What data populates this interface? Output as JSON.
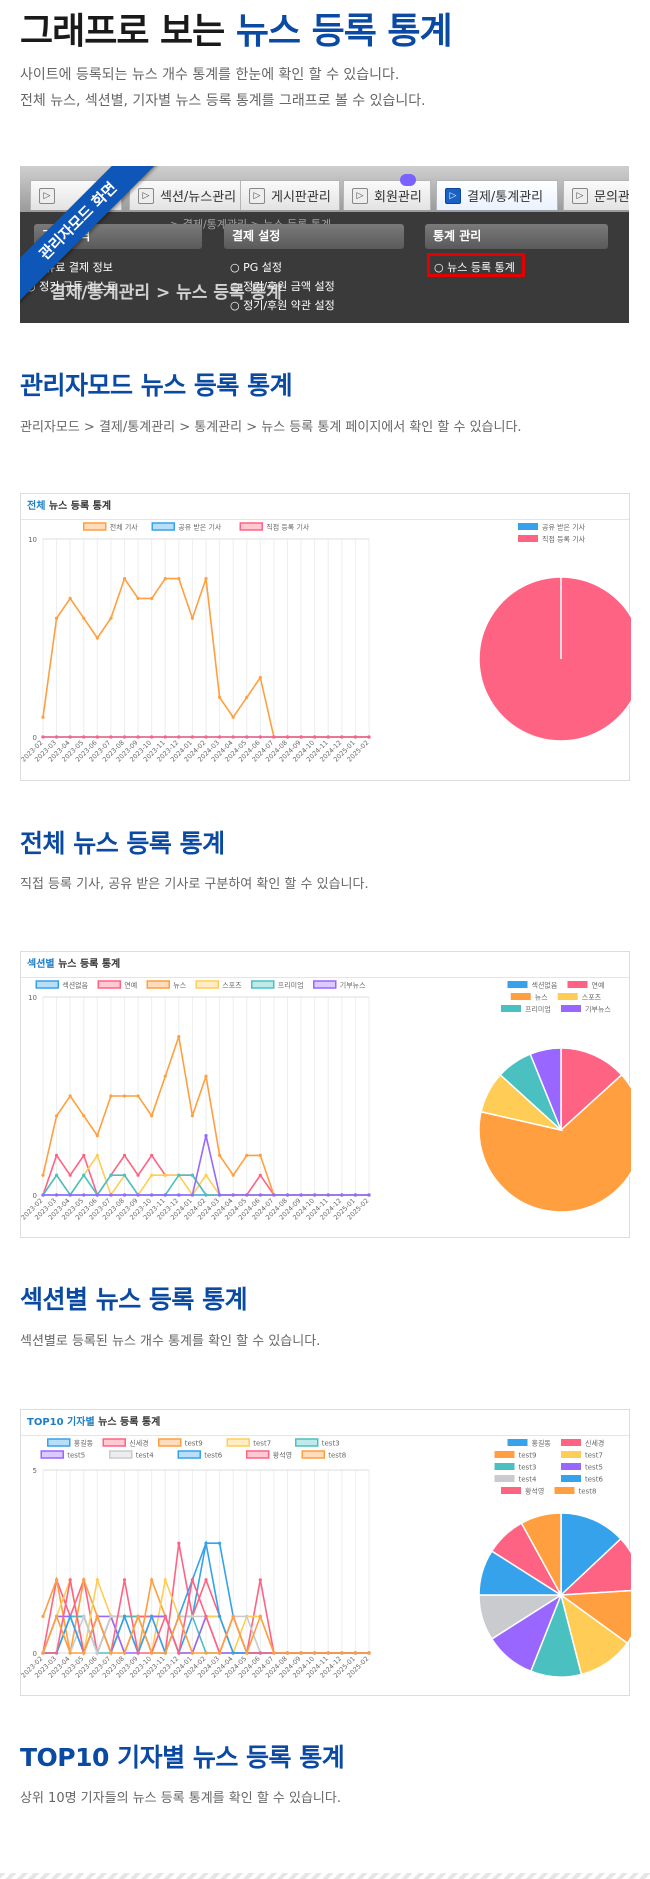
{
  "hero": {
    "title_prefix": "그래프로 보는",
    "title_highlight": "뉴스 등록 통계",
    "desc_line1": "사이트에 등록되는 뉴스 개수 통계를 한눈에 확인 할 수 있습니다.",
    "desc_line2": "전체 뉴스, 섹션별, 기자별 뉴스 등록 통계를 그래프로 볼 수 있습니다."
  },
  "admin": {
    "ribbon": "관리자모드 화면",
    "tabs": [
      "",
      "섹션/뉴스관리",
      "게시판관리",
      "회원관리",
      "결제/통계관리",
      "문의관리"
    ],
    "breadcrumb_faint": "> 결제/통계관리 > 뉴스 등록 통계",
    "groups": [
      {
        "title": "결제 내역",
        "items": [
          "유료 결제 정보",
          "정기 구독 리스트"
        ]
      },
      {
        "title": "결제 설정",
        "items": [
          "PG 설정",
          "정기/후원 금액 설정",
          "정기/후원 약관 설정"
        ]
      },
      {
        "title": "통계 관리",
        "items": [
          "뉴스 등록 통계"
        ]
      }
    ],
    "page_crumb": "결제/통계관리 > 뉴스 등록 통계"
  },
  "sections": [
    {
      "title": "관리자모드 뉴스 등록 통계",
      "desc": "관리자모드 > 결제/통계관리 > 통계관리 > 뉴스 등록 통계 페이지에서 확인 할 수 있습니다."
    },
    {
      "title": "전체 뉴스 등록 통계",
      "desc": "직접 등록 기사, 공유 받은 기사로 구분하여 확인 할 수 있습니다."
    },
    {
      "title": "섹션별 뉴스 등록 통계",
      "desc": "섹션별로 등록된 뉴스 개수 통계를 확인 할 수 있습니다."
    },
    {
      "title": "TOP10 기자별 뉴스 등록 통계",
      "desc": "상위 10명 기자들의 뉴스 등록 통계를 확인 할 수 있습니다."
    }
  ],
  "cards": [
    {
      "head_accent": "전체",
      "head_rest": " 뉴스 등록 통계"
    },
    {
      "head_accent": "섹션별",
      "head_rest": " 뉴스 등록 통계"
    },
    {
      "head_accent": "TOP10 기자별",
      "head_rest": " 뉴스 등록 통계"
    }
  ],
  "chart_data": [
    {
      "type": "line",
      "x": [
        "2023-02",
        "2023-03",
        "2023-04",
        "2023-05",
        "2023-06",
        "2023-07",
        "2023-08",
        "2023-09",
        "2023-10",
        "2023-11",
        "2023-12",
        "2024-01",
        "2024-02",
        "2024-03",
        "2024-04",
        "2024-05",
        "2024-06",
        "2024-07",
        "2024-08",
        "2024-09",
        "2024-10",
        "2024-11",
        "2024-12",
        "2025-01",
        "2025-02"
      ],
      "ylim": [
        0,
        10
      ],
      "yticks": [
        0,
        10
      ],
      "grid": true,
      "legend": "top",
      "series": [
        {
          "name": "전체 기사",
          "color": "#ff9f40",
          "values": [
            1,
            6,
            7,
            6,
            5,
            6,
            8,
            7,
            7,
            8,
            8,
            6,
            8,
            2,
            1,
            2,
            3,
            0,
            0,
            0,
            0,
            0,
            0,
            0,
            0
          ]
        },
        {
          "name": "공유 받은 기사",
          "color": "#36a2eb",
          "values": [
            0,
            0,
            0,
            0,
            0,
            0,
            0,
            0,
            0,
            0,
            0,
            0,
            0,
            0,
            0,
            0,
            0,
            0,
            0,
            0,
            0,
            0,
            0,
            0,
            0
          ]
        },
        {
          "name": "직접 등록 기사",
          "color": "#ff6384",
          "values": [
            0,
            0,
            0,
            0,
            0,
            0,
            0,
            0,
            0,
            0,
            0,
            0,
            0,
            0,
            0,
            0,
            0,
            0,
            0,
            0,
            0,
            0,
            0,
            0,
            0
          ]
        }
      ],
      "pie": {
        "legend": [
          "공유 받은 기사",
          "직접 등록 기사"
        ],
        "colors": [
          "#36a2eb",
          "#ff6384"
        ],
        "values": [
          0,
          100
        ]
      }
    },
    {
      "type": "line",
      "x": [
        "2023-02",
        "2023-03",
        "2023-04",
        "2023-05",
        "2023-06",
        "2023-07",
        "2023-08",
        "2023-09",
        "2023-10",
        "2023-11",
        "2023-12",
        "2024-01",
        "2024-02",
        "2024-03",
        "2024-04",
        "2024-05",
        "2024-06",
        "2024-07",
        "2024-08",
        "2024-09",
        "2024-10",
        "2024-11",
        "2024-12",
        "2025-01",
        "2025-02"
      ],
      "ylim": [
        0,
        10
      ],
      "yticks": [
        0,
        10
      ],
      "grid": true,
      "legend": "top",
      "series": [
        {
          "name": "섹션없음",
          "color": "#36a2eb",
          "values": [
            0,
            0,
            0,
            0,
            0,
            0,
            0,
            0,
            0,
            0,
            0,
            0,
            0,
            0,
            0,
            0,
            0,
            0,
            0,
            0,
            0,
            0,
            0,
            0,
            0
          ]
        },
        {
          "name": "연예",
          "color": "#ff6384",
          "values": [
            0,
            2,
            1,
            2,
            0,
            1,
            2,
            1,
            2,
            1,
            1,
            1,
            0,
            0,
            0,
            0,
            1,
            0,
            0,
            0,
            0,
            0,
            0,
            0,
            0
          ]
        },
        {
          "name": "뉴스",
          "color": "#ff9f40",
          "values": [
            1,
            4,
            5,
            4,
            3,
            5,
            5,
            5,
            4,
            6,
            8,
            4,
            6,
            2,
            1,
            2,
            2,
            0,
            0,
            0,
            0,
            0,
            0,
            0,
            0
          ]
        },
        {
          "name": "스포츠",
          "color": "#ffcd56",
          "values": [
            0,
            1,
            0,
            1,
            2,
            0,
            1,
            0,
            1,
            1,
            1,
            0,
            1,
            0,
            0,
            0,
            0,
            0,
            0,
            0,
            0,
            0,
            0,
            0,
            0
          ]
        },
        {
          "name": "프리미엄",
          "color": "#4bc0c0",
          "values": [
            0,
            1,
            0,
            1,
            0,
            1,
            1,
            0,
            0,
            0,
            1,
            1,
            0,
            0,
            0,
            0,
            0,
            0,
            0,
            0,
            0,
            0,
            0,
            0,
            0
          ]
        },
        {
          "name": "기부뉴스",
          "color": "#9966ff",
          "values": [
            0,
            0,
            0,
            0,
            0,
            0,
            0,
            0,
            0,
            0,
            0,
            0,
            3,
            0,
            0,
            0,
            0,
            0,
            0,
            0,
            0,
            0,
            0,
            0,
            0
          ]
        }
      ],
      "pie": {
        "legend": [
          "섹션없음",
          "연예",
          "뉴스",
          "스포츠",
          "프리미엄",
          "기부뉴스"
        ],
        "colors": [
          "#36a2eb",
          "#ff6384",
          "#ff9f40",
          "#ffcd56",
          "#4bc0c0",
          "#9966ff"
        ],
        "values": [
          0,
          13,
          64,
          8,
          7,
          6
        ]
      }
    },
    {
      "type": "line",
      "x": [
        "2023-02",
        "2023-03",
        "2023-04",
        "2023-05",
        "2023-06",
        "2023-07",
        "2023-08",
        "2023-09",
        "2023-10",
        "2023-11",
        "2023-12",
        "2024-01",
        "2024-02",
        "2024-03",
        "2024-04",
        "2024-05",
        "2024-06",
        "2024-07",
        "2024-08",
        "2024-09",
        "2024-10",
        "2024-11",
        "2024-12",
        "2025-01",
        "2025-02"
      ],
      "ylim": [
        0,
        5
      ],
      "yticks": [
        0,
        5
      ],
      "grid": true,
      "legend": "top",
      "series": [
        {
          "name": "홍길동",
          "color": "#36a2eb",
          "values": [
            0,
            0,
            1,
            1,
            0,
            1,
            1,
            1,
            1,
            1,
            0,
            1,
            3,
            3,
            1,
            0,
            0,
            0,
            0,
            0,
            0,
            0,
            0,
            0,
            0
          ]
        },
        {
          "name": "신세경",
          "color": "#ff6384",
          "values": [
            0,
            2,
            1,
            2,
            0,
            1,
            0,
            1,
            1,
            0,
            3,
            1,
            2,
            1,
            0,
            0,
            2,
            0,
            0,
            0,
            0,
            0,
            0,
            0,
            0
          ]
        },
        {
          "name": "test9",
          "color": "#ff9f40",
          "values": [
            1,
            2,
            0,
            2,
            1,
            0,
            1,
            0,
            2,
            1,
            0,
            0,
            1,
            1,
            0,
            0,
            0,
            0,
            0,
            0,
            0,
            0,
            0,
            0,
            0
          ]
        },
        {
          "name": "test7",
          "color": "#ffcd56",
          "values": [
            0,
            1,
            2,
            0,
            2,
            1,
            0,
            1,
            0,
            2,
            1,
            0,
            1,
            1,
            0,
            1,
            1,
            0,
            0,
            0,
            0,
            0,
            0,
            0,
            0
          ]
        },
        {
          "name": "test3",
          "color": "#4bc0c0",
          "values": [
            0,
            0,
            1,
            1,
            0,
            0,
            1,
            1,
            0,
            0,
            1,
            1,
            0,
            0,
            0,
            0,
            0,
            0,
            0,
            0,
            0,
            0,
            0,
            0,
            0
          ]
        },
        {
          "name": "test5",
          "color": "#9966ff",
          "values": [
            0,
            1,
            1,
            0,
            1,
            1,
            0,
            0,
            1,
            1,
            0,
            0,
            1,
            0,
            0,
            0,
            0,
            0,
            0,
            0,
            0,
            0,
            0,
            0,
            0
          ]
        },
        {
          "name": "test4",
          "color": "#c9cbcf",
          "values": [
            0,
            1,
            0,
            1,
            0,
            1,
            1,
            0,
            1,
            0,
            1,
            1,
            1,
            0,
            1,
            1,
            0,
            0,
            0,
            0,
            0,
            0,
            0,
            0,
            0
          ]
        },
        {
          "name": "test6",
          "color": "#36a2eb",
          "values": [
            0,
            0,
            1,
            0,
            1,
            0,
            1,
            0,
            1,
            0,
            1,
            2,
            3,
            1,
            0,
            0,
            0,
            0,
            0,
            0,
            0,
            0,
            0,
            0,
            0
          ]
        },
        {
          "name": "황석영",
          "color": "#ff6384",
          "values": [
            0,
            0,
            2,
            0,
            1,
            0,
            2,
            0,
            0,
            1,
            0,
            2,
            1,
            0,
            1,
            0,
            0,
            0,
            0,
            0,
            0,
            0,
            0,
            0,
            0
          ]
        },
        {
          "name": "test8",
          "color": "#ff9f40",
          "values": [
            0,
            1,
            0,
            0,
            1,
            0,
            0,
            1,
            0,
            0,
            1,
            0,
            0,
            0,
            1,
            0,
            1,
            0,
            0,
            0,
            0,
            0,
            0,
            0,
            0
          ]
        }
      ],
      "pie": {
        "legend": [
          "홍길동",
          "신세경",
          "test9",
          "test7",
          "test3",
          "test5",
          "test4",
          "test6",
          "황석영",
          "test8"
        ],
        "colors": [
          "#36a2eb",
          "#ff6384",
          "#ff9f40",
          "#ffcd56",
          "#4bc0c0",
          "#9966ff",
          "#c9cbcf",
          "#36a2eb",
          "#ff6384",
          "#ff9f40"
        ],
        "values": [
          13,
          11,
          11,
          11,
          10,
          10,
          9,
          9,
          8,
          8
        ]
      }
    }
  ]
}
